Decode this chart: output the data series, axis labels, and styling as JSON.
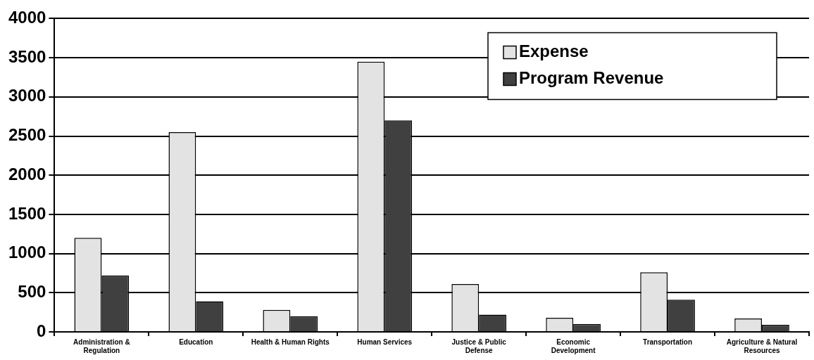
{
  "chart_data": {
    "type": "bar",
    "categories": [
      "Administration & Regulation",
      "Education",
      "Health & Human Rights",
      "Human Services",
      "Justice & Public Defense",
      "Economic Development",
      "Transportation",
      "Agriculture & Natural Resources"
    ],
    "series": [
      {
        "name": "Expense",
        "color": "#e3e3e3",
        "values": [
          1200,
          2550,
          280,
          3450,
          610,
          180,
          760,
          170
        ]
      },
      {
        "name": "Program Revenue",
        "color": "#404040",
        "values": [
          720,
          390,
          200,
          2700,
          220,
          100,
          410,
          90
        ]
      }
    ],
    "ylim": [
      0,
      4000
    ],
    "yticks": [
      0,
      500,
      1000,
      1500,
      2000,
      2500,
      3000,
      3500,
      4000
    ],
    "grid": "y",
    "legend": "top right"
  }
}
